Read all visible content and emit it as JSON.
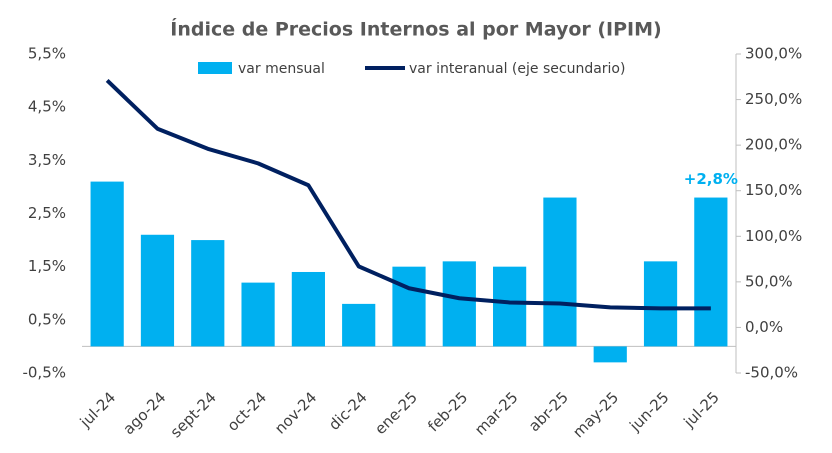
{
  "chart_data": {
    "type": "bar_line",
    "title": "Índice de Precios Internos al por Mayor (IPIM)",
    "categories": [
      "jul-24",
      "ago-24",
      "sept-24",
      "oct-24",
      "nov-24",
      "dic-24",
      "ene-25",
      "feb-25",
      "mar-25",
      "abr-25",
      "may-25",
      "jun-25",
      "jul-25"
    ],
    "series": [
      {
        "name": "var mensual",
        "type": "bar",
        "color": "#00b0f0",
        "values": [
          3.1,
          2.1,
          2.0,
          1.2,
          1.4,
          0.8,
          1.5,
          1.6,
          1.5,
          2.8,
          -0.3,
          1.6,
          2.8
        ]
      },
      {
        "name": "var interanual (eje secundario)",
        "type": "line",
        "axis": "y2",
        "color": "#002060",
        "values": [
          271,
          218,
          196,
          180,
          156,
          67,
          43,
          32,
          27.4,
          26.3,
          22,
          20.9,
          20.9
        ]
      }
    ],
    "annotations": [
      {
        "category": "jul-25",
        "text": "+2,8%",
        "color": "#00b0f0"
      }
    ],
    "ylim": [
      -0.5,
      5.5
    ],
    "yticks": [
      {
        "value": -0.5,
        "label": "-0,5%"
      },
      {
        "value": 0.5,
        "label": "0,5%"
      },
      {
        "value": 1.5,
        "label": "1,5%"
      },
      {
        "value": 2.5,
        "label": "2,5%"
      },
      {
        "value": 3.5,
        "label": "3,5%"
      },
      {
        "value": 4.5,
        "label": "4,5%"
      },
      {
        "value": 5.5,
        "label": "5,5%"
      }
    ],
    "y2lim": [
      -50,
      300
    ],
    "y2ticks": [
      {
        "value": -50,
        "label": "-50,0%"
      },
      {
        "value": 0,
        "label": "0,0%"
      },
      {
        "value": 50,
        "label": "50,0%"
      },
      {
        "value": 100,
        "label": "100,0%"
      },
      {
        "value": 150,
        "label": "150,0%"
      },
      {
        "value": 200,
        "label": "200,0%"
      },
      {
        "value": 250,
        "label": "250,0%"
      },
      {
        "value": 300,
        "label": "300,0%"
      }
    ],
    "legend": "top"
  }
}
